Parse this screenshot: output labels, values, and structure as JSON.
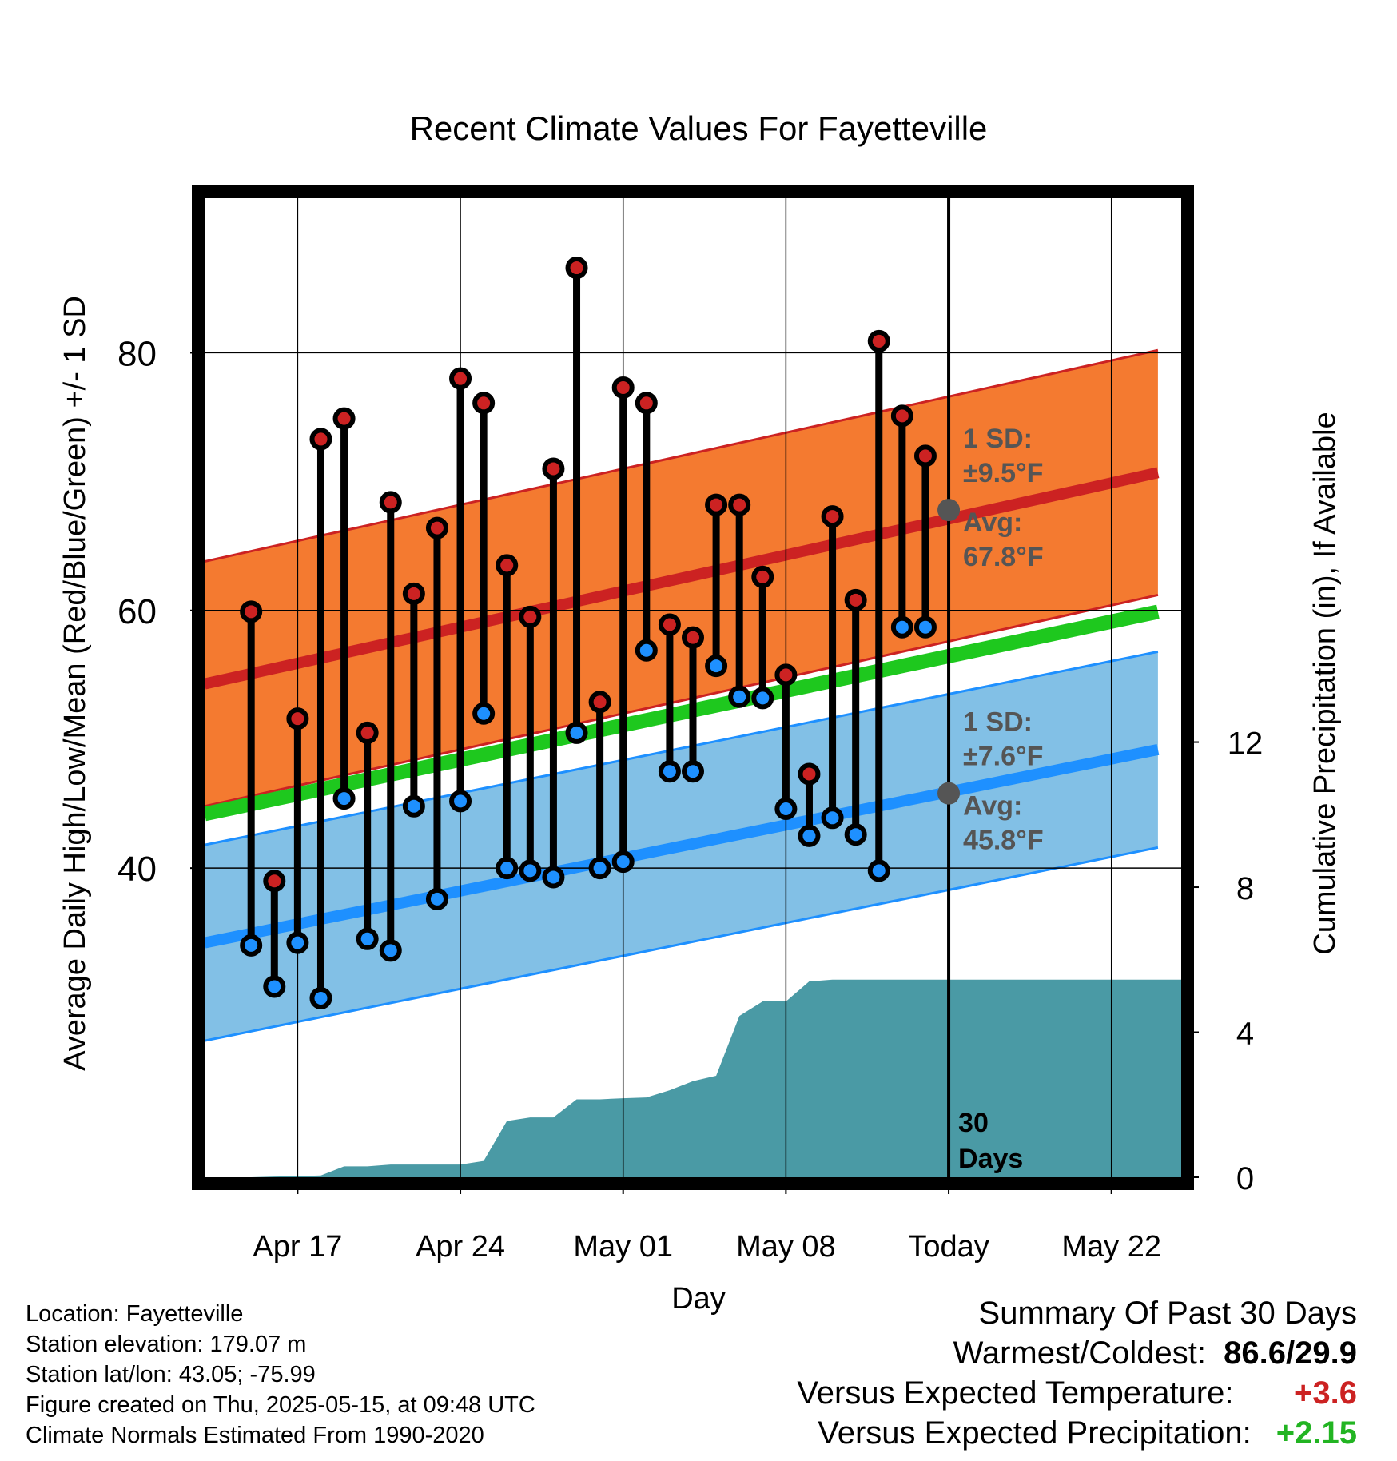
{
  "chart_data": {
    "type": "line",
    "title": "Recent Climate Values For Fayetteville",
    "xlabel": "Day",
    "ylabel": "Average Daily High/Low/Mean (Red/Blue/Green) +/- 1 SD",
    "y2label": "Cumulative Precipitation (in), If Available",
    "ylim": [
      16,
      92
    ],
    "y2lim": [
      0,
      27
    ],
    "yticks": [
      40,
      60,
      80
    ],
    "y2ticks": [
      0,
      4,
      8,
      12
    ],
    "xlim": [
      "2025-04-13",
      "2025-05-25"
    ],
    "xticks": [
      {
        "date": "2025-04-17",
        "label": "Apr 17"
      },
      {
        "date": "2025-04-24",
        "label": "Apr 24"
      },
      {
        "date": "2025-05-01",
        "label": "May 01"
      },
      {
        "date": "2025-05-08",
        "label": "May 08"
      },
      {
        "date": "2025-05-15",
        "label": "Today"
      },
      {
        "date": "2025-05-22",
        "label": "May 22"
      }
    ],
    "grid": true,
    "today": "2025-05-15",
    "today_label": "30 Days",
    "normals": {
      "start": "2025-04-13",
      "end": "2025-05-24",
      "high_mean": [
        54.3,
        70.7
      ],
      "high_sd_label": "1 SD:",
      "high_sd_value": "±9.5°F",
      "high_avg_label": "Avg:",
      "high_avg_value": "67.8°F",
      "high_avg_today": 67.8,
      "high_sd": 9.5,
      "low_mean": [
        34.2,
        49.2
      ],
      "low_sd_label": "1 SD:",
      "low_sd_value": "±7.6°F",
      "low_avg_label": "Avg:",
      "low_avg_value": "45.8°F",
      "low_avg_today": 45.8,
      "low_sd": 7.6,
      "mean": [
        44.2,
        59.9
      ]
    },
    "series": [
      {
        "name": "High",
        "color": "#cc2222",
        "x": [
          "2025-04-15",
          "2025-04-16",
          "2025-04-17",
          "2025-04-18",
          "2025-04-19",
          "2025-04-20",
          "2025-04-21",
          "2025-04-22",
          "2025-04-23",
          "2025-04-24",
          "2025-04-25",
          "2025-04-26",
          "2025-04-27",
          "2025-04-28",
          "2025-04-29",
          "2025-04-30",
          "2025-05-01",
          "2025-05-02",
          "2025-05-03",
          "2025-05-04",
          "2025-05-05",
          "2025-05-06",
          "2025-05-07",
          "2025-05-08",
          "2025-05-09",
          "2025-05-10",
          "2025-05-11",
          "2025-05-12",
          "2025-05-13",
          "2025-05-14"
        ],
        "values": [
          59.9,
          39.0,
          51.6,
          73.3,
          74.9,
          50.5,
          68.4,
          61.3,
          66.4,
          78.0,
          76.1,
          63.5,
          59.5,
          71.0,
          86.6,
          52.9,
          77.3,
          76.1,
          58.9,
          57.9,
          68.2,
          68.2,
          62.6,
          55.0,
          47.3,
          67.3,
          60.8,
          80.9,
          75.1,
          72.0
        ]
      },
      {
        "name": "Low",
        "color": "#1e90ff",
        "x": [
          "2025-04-15",
          "2025-04-16",
          "2025-04-17",
          "2025-04-18",
          "2025-04-19",
          "2025-04-20",
          "2025-04-21",
          "2025-04-22",
          "2025-04-23",
          "2025-04-24",
          "2025-04-25",
          "2025-04-26",
          "2025-04-27",
          "2025-04-28",
          "2025-04-29",
          "2025-04-30",
          "2025-05-01",
          "2025-05-02",
          "2025-05-03",
          "2025-05-04",
          "2025-05-05",
          "2025-05-06",
          "2025-05-07",
          "2025-05-08",
          "2025-05-09",
          "2025-05-10",
          "2025-05-11",
          "2025-05-12",
          "2025-05-13",
          "2025-05-14"
        ],
        "values": [
          34.0,
          30.8,
          34.2,
          29.9,
          45.4,
          34.5,
          33.6,
          44.8,
          37.6,
          45.2,
          52.0,
          40.0,
          39.8,
          39.3,
          50.5,
          40.0,
          40.5,
          56.9,
          47.5,
          47.5,
          55.7,
          53.3,
          53.2,
          44.6,
          42.5,
          43.9,
          42.6,
          39.8,
          58.7,
          58.7
        ]
      },
      {
        "name": "Cumulative Precipitation",
        "color": "#4a9aa5",
        "axis": "y2",
        "x": [
          "2025-04-13",
          "2025-04-15",
          "2025-04-16",
          "2025-04-17",
          "2025-04-18",
          "2025-04-19",
          "2025-04-20",
          "2025-04-21",
          "2025-04-22",
          "2025-04-23",
          "2025-04-24",
          "2025-04-25",
          "2025-04-26",
          "2025-04-27",
          "2025-04-28",
          "2025-04-29",
          "2025-04-30",
          "2025-05-01",
          "2025-05-02",
          "2025-05-03",
          "2025-05-04",
          "2025-05-05",
          "2025-05-06",
          "2025-05-07",
          "2025-05-08",
          "2025-05-09",
          "2025-05-10",
          "2025-05-11",
          "2025-05-12",
          "2025-05-13",
          "2025-05-14",
          "2025-05-15",
          "2025-05-25"
        ],
        "values": [
          0.0,
          0.0,
          0.02,
          0.03,
          0.05,
          0.3,
          0.3,
          0.35,
          0.35,
          0.35,
          0.35,
          0.45,
          1.55,
          1.65,
          1.65,
          2.15,
          2.15,
          2.18,
          2.2,
          2.4,
          2.65,
          2.8,
          4.45,
          4.85,
          4.85,
          5.4,
          5.45,
          5.45,
          5.45,
          5.45,
          5.45,
          5.45,
          5.45
        ]
      }
    ]
  },
  "footer": {
    "location": "Location: Fayetteville",
    "elevation": "Station elevation: 179.07 m",
    "latlon": "Station lat/lon: 43.05; -75.99",
    "created": "Figure created on Thu, 2025-05-15, at 09:48 UTC",
    "normals": "Climate Normals Estimated From 1990-2020"
  },
  "summary": {
    "title": "Summary Of Past 30 Days",
    "warm_cold_label": "Warmest/Coldest:",
    "warm_cold_value": "86.6/29.9",
    "temp_label": "Versus Expected Temperature:",
    "temp_value": "+3.6",
    "temp_color": "#cc2222",
    "precip_label": "Versus Expected Precipitation:",
    "precip_value": "+2.15",
    "precip_color": "#22b422"
  },
  "colors": {
    "high_band": "#f47a30",
    "high_line": "#cc2222",
    "low_band": "#82c0e6",
    "low_line": "#1e90ff",
    "mean_line": "#1ec81e",
    "precip": "#4a9aa5"
  }
}
